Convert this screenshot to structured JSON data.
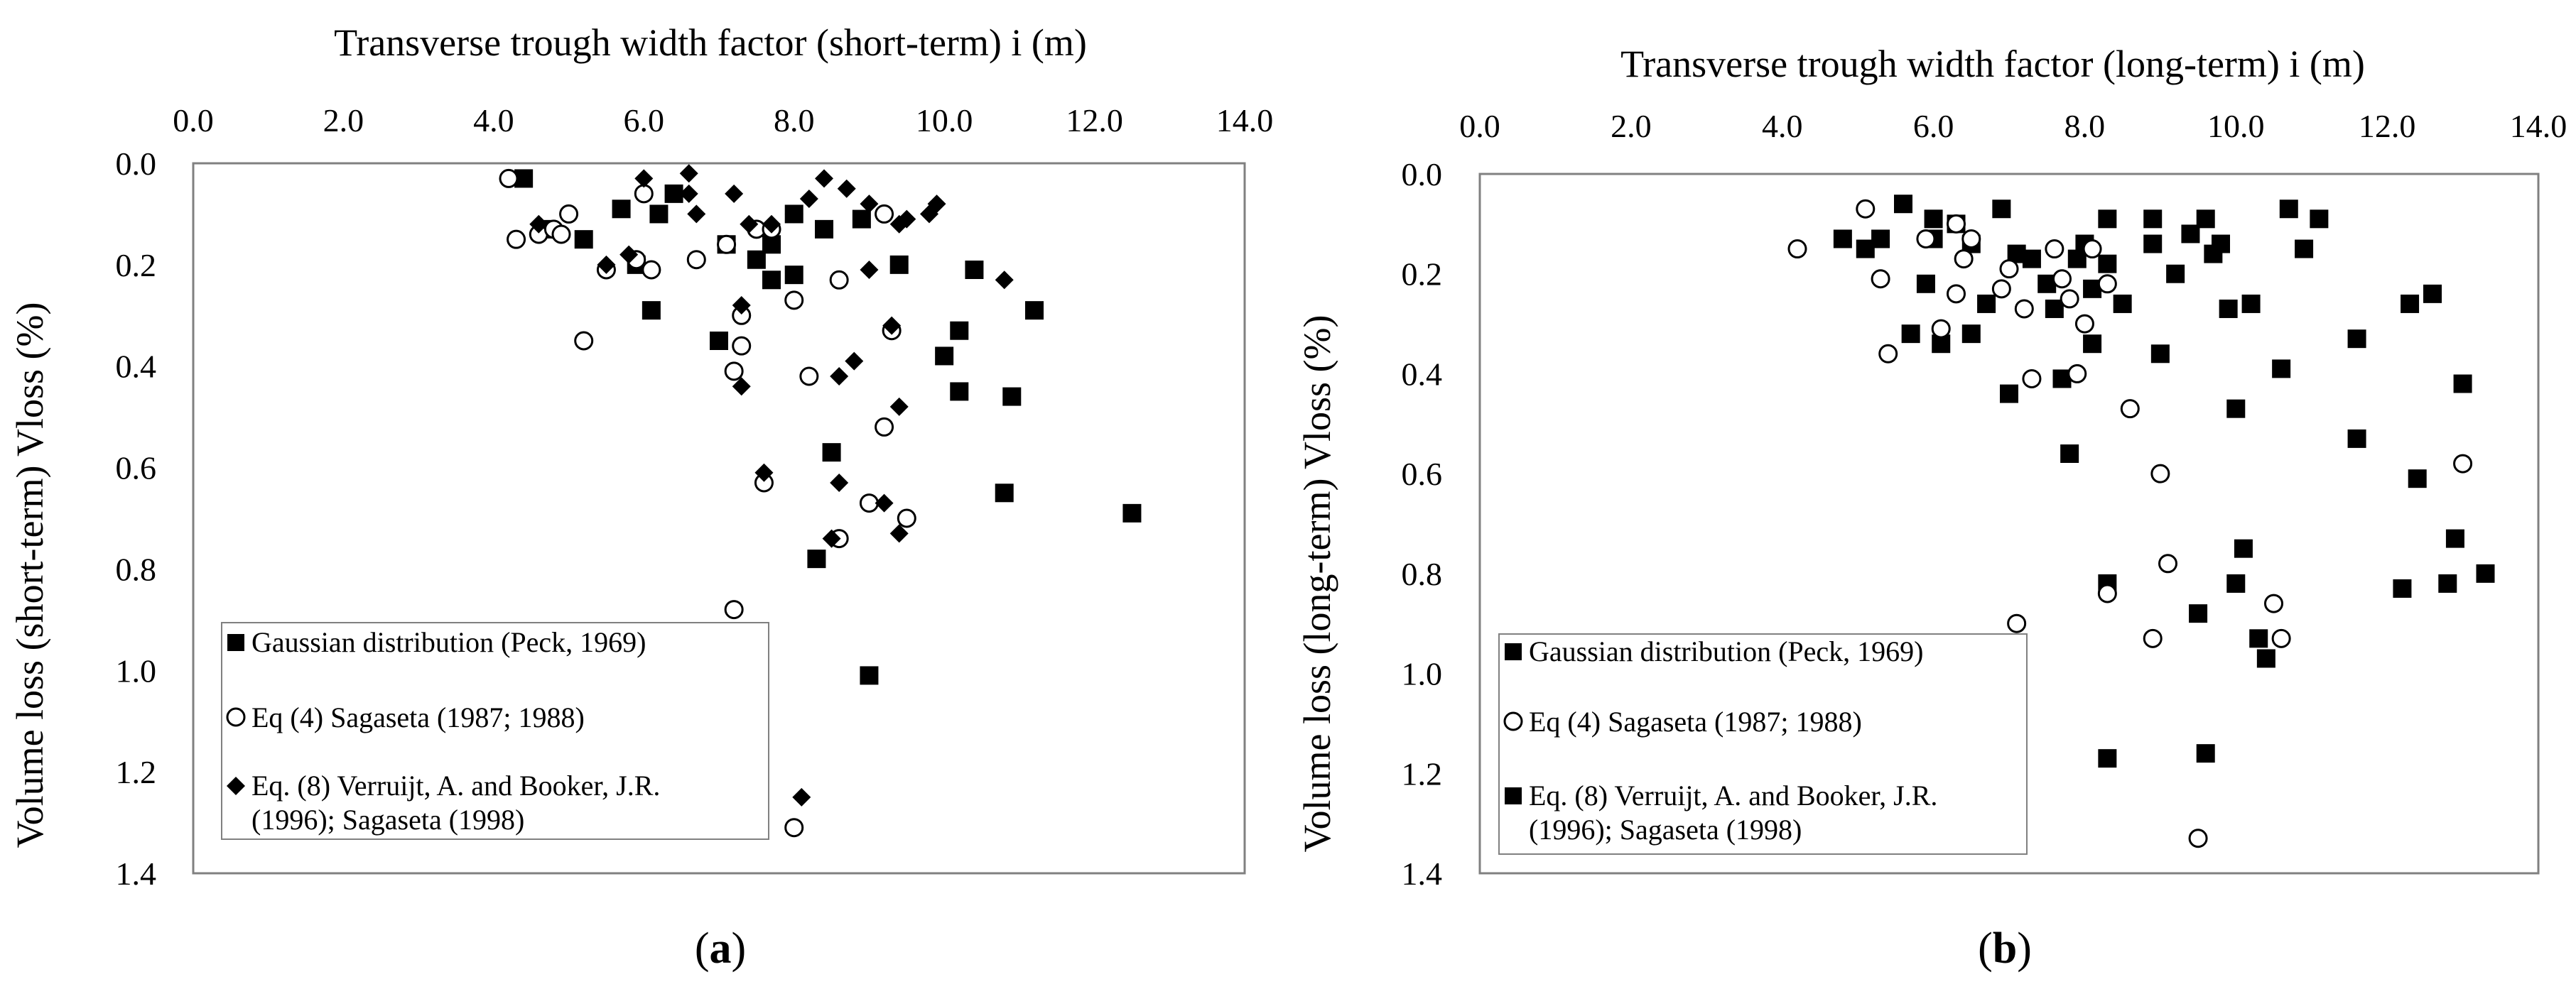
{
  "chart_data": [
    {
      "type": "scatter",
      "panel_label": "a",
      "title": "Transverse trough width factor (short-term) i (m)",
      "ylabel": "Volume loss (short-term) Vloss (%)",
      "xlim": [
        0,
        14
      ],
      "ylim": [
        0,
        1.4
      ],
      "y_inverted": true,
      "x_ticks": [
        "0.0",
        "2.0",
        "4.0",
        "6.0",
        "8.0",
        "10.0",
        "12.0",
        "14.0"
      ],
      "y_ticks": [
        "0.0",
        "0.2",
        "0.4",
        "0.6",
        "0.8",
        "1.0",
        "1.2",
        "1.4"
      ],
      "legend_position": "bottom-left",
      "series": [
        {
          "name": "Gaussian distribution (Peck, 1969)",
          "marker": "filled-square",
          "points": [
            [
              4.4,
              0.03
            ],
            [
              4.7,
              0.13
            ],
            [
              5.2,
              0.15
            ],
            [
              5.7,
              0.09
            ],
            [
              5.9,
              0.2
            ],
            [
              6.1,
              0.29
            ],
            [
              6.2,
              0.1
            ],
            [
              6.4,
              0.06
            ],
            [
              7.0,
              0.35
            ],
            [
              7.1,
              0.16
            ],
            [
              7.5,
              0.19
            ],
            [
              7.7,
              0.16
            ],
            [
              7.7,
              0.23
            ],
            [
              8.0,
              0.22
            ],
            [
              8.0,
              0.1
            ],
            [
              8.4,
              0.13
            ],
            [
              8.5,
              0.57
            ],
            [
              8.3,
              0.78
            ],
            [
              8.9,
              0.11
            ],
            [
              9.0,
              1.01
            ],
            [
              9.4,
              0.2
            ],
            [
              10.0,
              0.38
            ],
            [
              10.2,
              0.33
            ],
            [
              10.2,
              0.45
            ],
            [
              10.4,
              0.21
            ],
            [
              10.8,
              0.65
            ],
            [
              10.9,
              0.46
            ],
            [
              11.2,
              0.29
            ],
            [
              12.5,
              0.69
            ]
          ]
        },
        {
          "name": "Eq (4) Sagaseta (1987; 1988)",
          "marker": "open-circle",
          "points": [
            [
              4.2,
              0.03
            ],
            [
              4.3,
              0.15
            ],
            [
              4.6,
              0.14
            ],
            [
              4.8,
              0.13
            ],
            [
              4.9,
              0.14
            ],
            [
              5.0,
              0.1
            ],
            [
              5.2,
              0.35
            ],
            [
              5.5,
              0.21
            ],
            [
              5.9,
              0.19
            ],
            [
              6.0,
              0.06
            ],
            [
              6.1,
              0.21
            ],
            [
              6.7,
              0.19
            ],
            [
              7.1,
              0.16
            ],
            [
              7.2,
              0.41
            ],
            [
              7.2,
              0.88
            ],
            [
              7.3,
              0.3
            ],
            [
              7.3,
              0.36
            ],
            [
              7.5,
              0.13
            ],
            [
              7.6,
              0.63
            ],
            [
              7.7,
              0.13
            ],
            [
              8.0,
              0.27
            ],
            [
              8.0,
              1.31
            ],
            [
              8.2,
              0.42
            ],
            [
              8.6,
              0.23
            ],
            [
              8.6,
              0.74
            ],
            [
              9.0,
              0.67
            ],
            [
              9.2,
              0.1
            ],
            [
              9.2,
              0.52
            ],
            [
              9.3,
              0.33
            ],
            [
              9.5,
              0.7
            ]
          ]
        },
        {
          "name": "Eq. (8) Verruijt, A. and Booker, J.R. (1996); Sagaseta (1998)",
          "marker": "filled-diamond",
          "points": [
            [
              4.6,
              0.12
            ],
            [
              5.5,
              0.2
            ],
            [
              5.8,
              0.18
            ],
            [
              6.0,
              0.03
            ],
            [
              6.6,
              0.02
            ],
            [
              6.6,
              0.06
            ],
            [
              6.7,
              0.1
            ],
            [
              7.2,
              0.06
            ],
            [
              7.3,
              0.28
            ],
            [
              7.3,
              0.44
            ],
            [
              7.4,
              0.12
            ],
            [
              7.6,
              0.61
            ],
            [
              7.7,
              0.12
            ],
            [
              8.0,
              0.1
            ],
            [
              8.1,
              1.25
            ],
            [
              8.2,
              0.07
            ],
            [
              8.4,
              0.03
            ],
            [
              8.5,
              0.74
            ],
            [
              8.6,
              0.63
            ],
            [
              8.6,
              0.42
            ],
            [
              8.7,
              0.05
            ],
            [
              8.8,
              0.39
            ],
            [
              9.0,
              0.21
            ],
            [
              9.0,
              0.08
            ],
            [
              9.2,
              0.67
            ],
            [
              9.3,
              0.32
            ],
            [
              9.4,
              0.12
            ],
            [
              9.4,
              0.48
            ],
            [
              9.4,
              0.73
            ],
            [
              9.5,
              0.11
            ],
            [
              9.8,
              0.1
            ],
            [
              9.9,
              0.08
            ],
            [
              10.8,
              0.23
            ]
          ]
        }
      ]
    },
    {
      "type": "scatter",
      "panel_label": "b",
      "title": "Transverse trough width factor (long-term) i (m)",
      "ylabel": "Volume loss (long-term) Vloss (%)",
      "xlim": [
        0,
        14
      ],
      "ylim": [
        0,
        1.4
      ],
      "y_inverted": true,
      "x_ticks": [
        "0.0",
        "2.0",
        "4.0",
        "6.0",
        "8.0",
        "10.0",
        "12.0",
        "14.0"
      ],
      "y_ticks": [
        "0.0",
        "0.2",
        "0.4",
        "0.6",
        "0.8",
        "1.0",
        "1.2",
        "1.4"
      ],
      "legend_position": "bottom-left",
      "series": [
        {
          "name": "Gaussian distribution (Peck, 1969)",
          "marker": "filled-square",
          "points": [
            [
              4.8,
              0.13
            ],
            [
              5.1,
              0.15
            ],
            [
              5.3,
              0.13
            ],
            [
              5.6,
              0.06
            ],
            [
              5.7,
              0.32
            ],
            [
              5.9,
              0.22
            ],
            [
              6.0,
              0.09
            ],
            [
              6.0,
              0.13
            ],
            [
              6.1,
              0.34
            ],
            [
              6.3,
              0.1
            ],
            [
              6.5,
              0.14
            ],
            [
              6.5,
              0.32
            ],
            [
              6.7,
              0.26
            ],
            [
              6.9,
              0.07
            ],
            [
              7.0,
              0.44
            ],
            [
              7.1,
              0.16
            ],
            [
              7.3,
              0.17
            ],
            [
              7.5,
              0.22
            ],
            [
              7.6,
              0.27
            ],
            [
              7.7,
              0.41
            ],
            [
              7.8,
              0.56
            ],
            [
              7.9,
              0.17
            ],
            [
              8.0,
              0.14
            ],
            [
              8.1,
              0.23
            ],
            [
              8.1,
              0.34
            ],
            [
              8.3,
              0.09
            ],
            [
              8.3,
              0.18
            ],
            [
              8.3,
              0.82
            ],
            [
              8.3,
              1.17
            ],
            [
              8.5,
              0.26
            ],
            [
              8.9,
              0.14
            ],
            [
              8.9,
              0.09
            ],
            [
              9.0,
              0.36
            ],
            [
              9.2,
              0.2
            ],
            [
              9.4,
              0.12
            ],
            [
              9.5,
              0.88
            ],
            [
              9.6,
              0.09
            ],
            [
              9.6,
              1.16
            ],
            [
              9.7,
              0.16
            ],
            [
              9.8,
              0.14
            ],
            [
              9.9,
              0.27
            ],
            [
              10.0,
              0.47
            ],
            [
              10.0,
              0.82
            ],
            [
              10.1,
              0.75
            ],
            [
              10.2,
              0.26
            ],
            [
              10.3,
              0.93
            ],
            [
              10.4,
              0.97
            ],
            [
              10.6,
              0.39
            ],
            [
              10.7,
              0.07
            ],
            [
              10.9,
              0.15
            ],
            [
              11.1,
              0.09
            ],
            [
              11.6,
              0.33
            ],
            [
              11.6,
              0.53
            ],
            [
              12.3,
              0.26
            ],
            [
              12.4,
              0.61
            ],
            [
              12.6,
              0.24
            ],
            [
              12.8,
              0.82
            ],
            [
              12.9,
              0.73
            ],
            [
              13.0,
              0.42
            ],
            [
              13.3,
              0.8
            ],
            [
              12.2,
              0.83
            ]
          ]
        },
        {
          "name": "Eq (4) Sagaseta (1987; 1988)",
          "marker": "open-circle",
          "points": [
            [
              4.2,
              0.15
            ],
            [
              5.1,
              0.07
            ],
            [
              5.3,
              0.21
            ],
            [
              5.4,
              0.36
            ],
            [
              5.9,
              0.13
            ],
            [
              6.1,
              0.31
            ],
            [
              6.3,
              0.1
            ],
            [
              6.3,
              0.24
            ],
            [
              6.4,
              0.17
            ],
            [
              6.5,
              0.13
            ],
            [
              6.9,
              0.23
            ],
            [
              7.0,
              0.19
            ],
            [
              7.1,
              0.9
            ],
            [
              7.2,
              0.27
            ],
            [
              7.3,
              0.41
            ],
            [
              7.6,
              0.15
            ],
            [
              7.7,
              0.21
            ],
            [
              7.8,
              0.25
            ],
            [
              7.9,
              0.4
            ],
            [
              8.0,
              0.3
            ],
            [
              8.1,
              0.15
            ],
            [
              8.3,
              0.22
            ],
            [
              8.3,
              0.84
            ],
            [
              8.6,
              0.47
            ],
            [
              8.9,
              0.93
            ],
            [
              9.0,
              0.6
            ],
            [
              9.1,
              0.78
            ],
            [
              9.5,
              1.33
            ],
            [
              10.5,
              0.86
            ],
            [
              10.6,
              0.93
            ],
            [
              13.0,
              0.58
            ]
          ]
        }
      ]
    }
  ],
  "legend": {
    "a": [
      "Gaussian distribution (Peck, 1969)",
      "Eq (4) Sagaseta (1987; 1988)",
      "Eq. (8) Verruijt, A. and Booker, J.R.",
      "(1996); Sagaseta (1998)"
    ],
    "b": [
      "Gaussian distribution (Peck, 1969)",
      "Eq (4) Sagaseta (1987; 1988)",
      "Eq. (8) Verruijt, A. and Booker, J.R.",
      "(1996); Sagaseta (1998)"
    ]
  },
  "panel_labels": {
    "a_open": "(",
    "a": "a",
    "a_close": ")",
    "b_open": "(",
    "b": "b",
    "b_close": ")"
  },
  "colors": {
    "marker": "#000000",
    "axis": "#808080",
    "background": "#ffffff"
  }
}
